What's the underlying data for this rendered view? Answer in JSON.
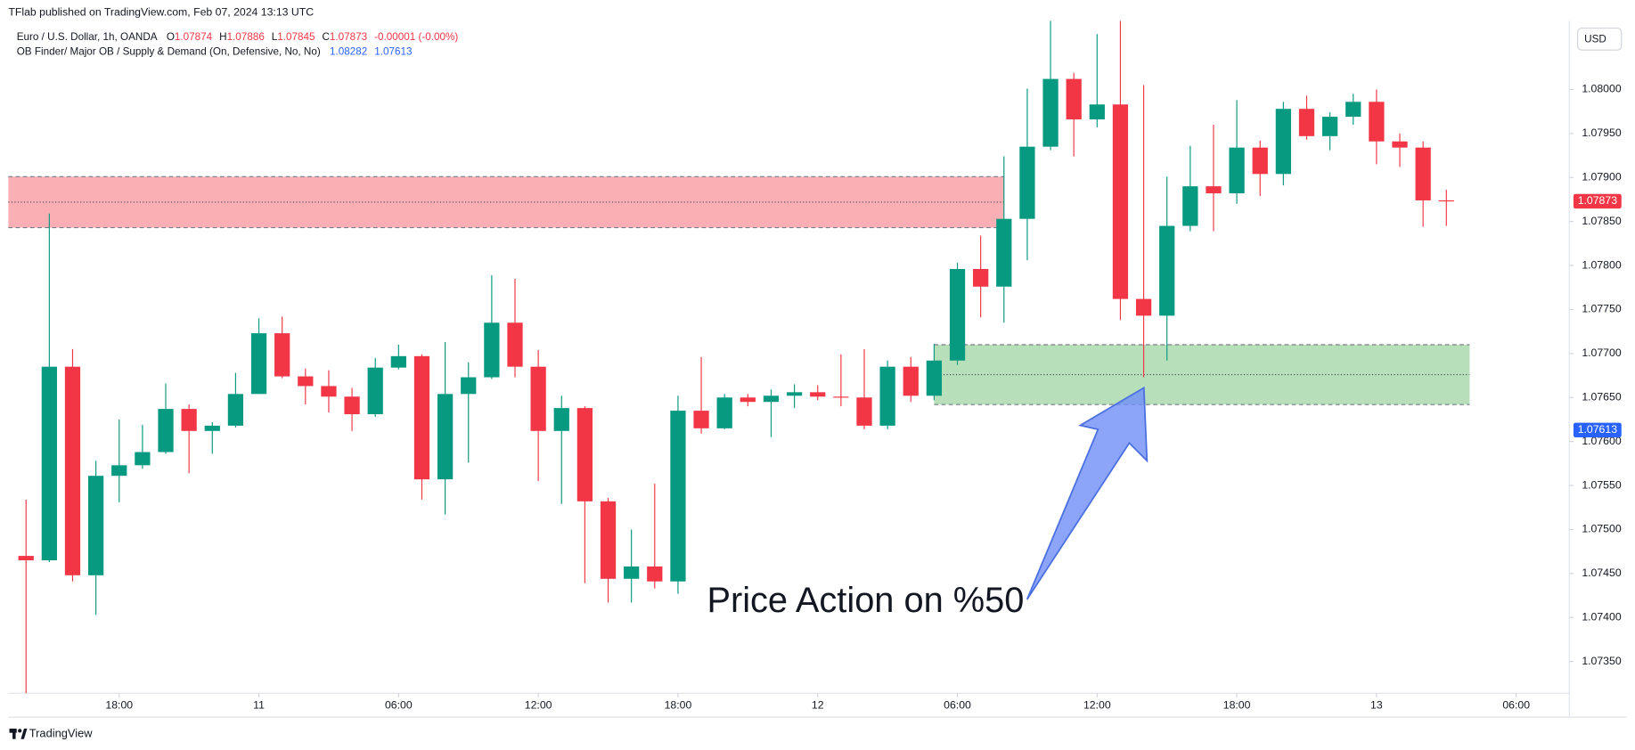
{
  "header": {
    "publisher": "TFlab published on TradingView.com, Feb 07, 2024 13:13 UTC",
    "brand": "TradingView"
  },
  "chart_data": {
    "type": "candlestick",
    "legend": {
      "symbol": "Euro / U.S. Dollar, 1h, OANDA",
      "prefixes": [
        "O",
        "H",
        "L",
        "C"
      ],
      "values": [
        1.07874,
        1.07886,
        1.07845,
        1.07873
      ],
      "change": "-0.00001 (-0.00%)"
    },
    "indicator": {
      "name": "OB Finder/ Major OB / Supply & Demand (On, Defensive, No, No)",
      "values": [
        1.08282,
        1.07613
      ],
      "color": "#2962ff"
    },
    "currency": "USD",
    "up_color": "#089981",
    "down_color": "#f23645",
    "open": [
      1.0747,
      1.07465,
      1.07685,
      1.07448,
      1.07561,
      1.07573,
      1.07588,
      1.07637,
      1.07612,
      1.07618,
      1.07654,
      1.07723,
      1.07674,
      1.07663,
      1.07651,
      1.07631,
      1.07684,
      1.07697,
      1.07557,
      1.07654,
      1.07673,
      1.07735,
      1.07685,
      1.07612,
      1.07638,
      1.07532,
      1.07444,
      1.07458,
      1.07441,
      1.07635,
      1.07615,
      1.0765,
      1.07645,
      1.07652,
      1.07656,
      1.07651,
      1.0765,
      1.07618,
      1.07685,
      1.07652,
      1.07692,
      1.07796,
      1.07776,
      1.07853,
      1.07935,
      1.08012,
      1.07966,
      1.07983,
      1.07762,
      1.07743,
      1.07845,
      1.0789,
      1.07882,
      1.07934,
      1.07904,
      1.07978,
      1.07947,
      1.07969,
      1.07986,
      1.07941,
      1.07934,
      1.07874
    ],
    "high": [
      1.07534,
      1.07859,
      1.07705,
      1.07578,
      1.07625,
      1.07619,
      1.07666,
      1.07642,
      1.07622,
      1.07678,
      1.0774,
      1.07742,
      1.07683,
      1.07681,
      1.07661,
      1.07695,
      1.0771,
      1.07699,
      1.07713,
      1.0769,
      1.07789,
      1.07785,
      1.07704,
      1.07652,
      1.0764,
      1.07536,
      1.075,
      1.07552,
      1.07652,
      1.07696,
      1.07654,
      1.07654,
      1.07659,
      1.07665,
      1.07664,
      1.07699,
      1.07705,
      1.07692,
      1.07696,
      1.07711,
      1.07803,
      1.07834,
      1.07924,
      1.08001,
      1.08078,
      1.08019,
      1.08063,
      1.08078,
      1.08005,
      1.07901,
      1.07936,
      1.0796,
      1.07988,
      1.07942,
      1.07986,
      1.07993,
      1.07974,
      1.07995,
      1.08,
      1.0795,
      1.07941,
      1.07886
    ],
    "low": [
      1.07314,
      1.07463,
      1.07441,
      1.07403,
      1.07531,
      1.07569,
      1.07586,
      1.07564,
      1.07586,
      1.07616,
      1.07654,
      1.07672,
      1.07642,
      1.07633,
      1.07612,
      1.07628,
      1.07682,
      1.07534,
      1.07517,
      1.07576,
      1.07671,
      1.07673,
      1.07555,
      1.07529,
      1.07439,
      1.07417,
      1.07417,
      1.07433,
      1.07427,
      1.07609,
      1.07614,
      1.0764,
      1.07605,
      1.07638,
      1.07647,
      1.0764,
      1.07614,
      1.07614,
      1.07645,
      1.07647,
      1.07687,
      1.07741,
      1.07735,
      1.07806,
      1.07931,
      1.07924,
      1.07957,
      1.07738,
      1.07673,
      1.07692,
      1.07839,
      1.07839,
      1.0787,
      1.07879,
      1.07891,
      1.07943,
      1.07931,
      1.0796,
      1.07915,
      1.07912,
      1.07844,
      1.07845
    ],
    "close": [
      1.07465,
      1.07685,
      1.07448,
      1.07561,
      1.07573,
      1.07588,
      1.07637,
      1.07612,
      1.07618,
      1.07654,
      1.07723,
      1.07674,
      1.07663,
      1.07651,
      1.07631,
      1.07684,
      1.07697,
      1.07557,
      1.07654,
      1.07673,
      1.07735,
      1.07685,
      1.07612,
      1.07638,
      1.07532,
      1.07444,
      1.07458,
      1.07441,
      1.07635,
      1.07615,
      1.0765,
      1.07645,
      1.07652,
      1.07656,
      1.07651,
      1.0765,
      1.07618,
      1.07685,
      1.07652,
      1.07692,
      1.07796,
      1.07776,
      1.07853,
      1.07935,
      1.08012,
      1.07966,
      1.07983,
      1.07762,
      1.07743,
      1.07845,
      1.0789,
      1.07882,
      1.07934,
      1.07904,
      1.07978,
      1.07947,
      1.07969,
      1.07986,
      1.07941,
      1.07934,
      1.07874,
      1.07873
    ],
    "xlim": [
      -0.76,
      66.28
    ],
    "xticks": [
      {
        "value": 4,
        "label": "18:00"
      },
      {
        "value": 10,
        "label": "11"
      },
      {
        "value": 16,
        "label": "06:00"
      },
      {
        "value": 22,
        "label": "12:00"
      },
      {
        "value": 28,
        "label": "18:00"
      },
      {
        "value": 34,
        "label": "12"
      },
      {
        "value": 40,
        "label": "06:00"
      },
      {
        "value": 46,
        "label": "12:00"
      },
      {
        "value": 52,
        "label": "18:00"
      },
      {
        "value": 58,
        "label": "13"
      },
      {
        "value": 64,
        "label": "06:00"
      }
    ],
    "ylim": [
      1.07314,
      1.08078
    ],
    "yticks": [
      {
        "value": 1.0735,
        "label": "1.07350"
      },
      {
        "value": 1.074,
        "label": "1.07400"
      },
      {
        "value": 1.0745,
        "label": "1.07450"
      },
      {
        "value": 1.075,
        "label": "1.07500"
      },
      {
        "value": 1.0755,
        "label": "1.07550"
      },
      {
        "value": 1.076,
        "label": "1.07600"
      },
      {
        "value": 1.0765,
        "label": "1.07650"
      },
      {
        "value": 1.077,
        "label": "1.07700"
      },
      {
        "value": 1.0775,
        "label": "1.07750"
      },
      {
        "value": 1.078,
        "label": "1.07800"
      },
      {
        "value": 1.0785,
        "label": "1.07850"
      },
      {
        "value": 1.079,
        "label": "1.07900"
      },
      {
        "value": 1.0795,
        "label": "1.07950"
      },
      {
        "value": 1.08,
        "label": "1.08000"
      }
    ],
    "grid": false,
    "zones": [
      {
        "top": 1.07901,
        "bottom": 1.07843,
        "mid": 1.07872,
        "end": 42,
        "color": "#f23645"
      },
      {
        "top": 1.0771,
        "bottom": 1.07642,
        "mid": 1.07676,
        "start": 39,
        "end": 62,
        "color": "#4caf50"
      }
    ],
    "price_labels": [
      {
        "value": 1.07873,
        "color": "#f23645"
      },
      {
        "value": 1.07613,
        "color": "#2962ff"
      }
    ],
    "annotation": "Price Action on %50"
  }
}
